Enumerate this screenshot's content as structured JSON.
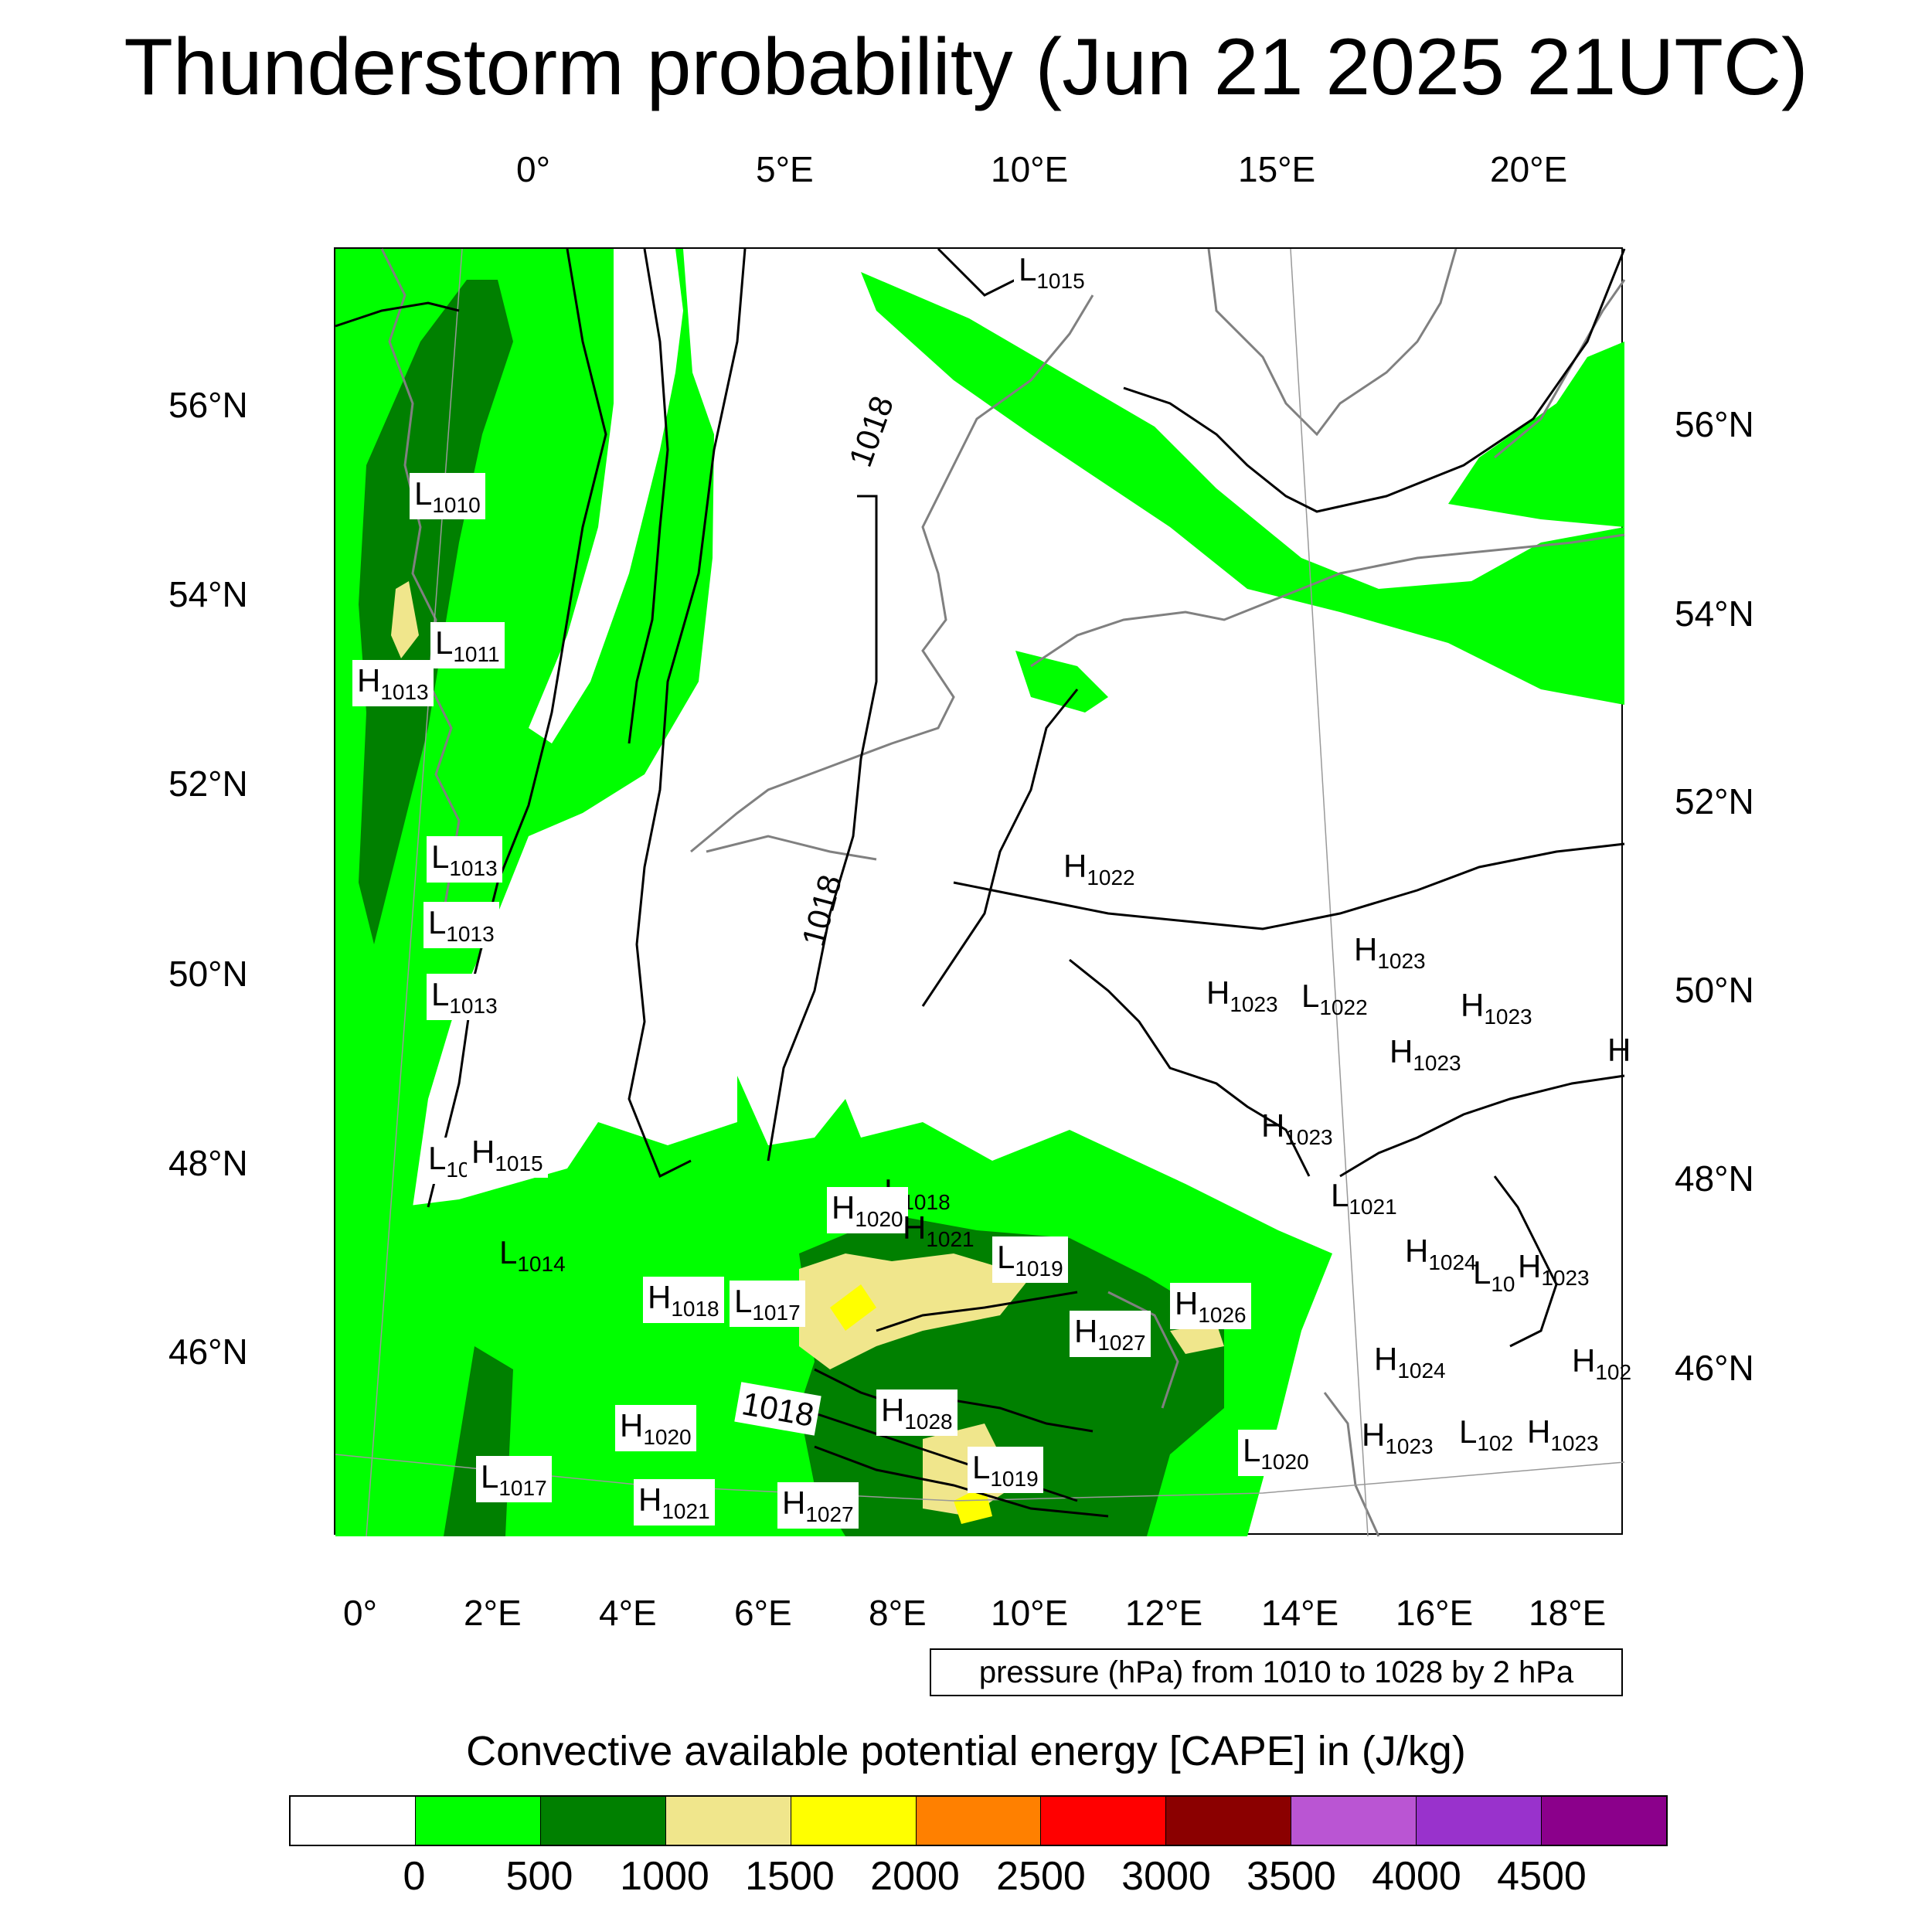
{
  "title": "Thunderstorm probability (Jun 21 2025 21UTC)",
  "map": {
    "lon_labels_top": [
      "0°",
      "5°E",
      "10°E",
      "15°E",
      "20°E"
    ],
    "lon_labels_bottom": [
      "0°",
      "2°E",
      "4°E",
      "6°E",
      "8°E",
      "10°E",
      "12°E",
      "14°E",
      "16°E",
      "18°E"
    ],
    "lat_labels_left": [
      "56°N",
      "54°N",
      "52°N",
      "50°N",
      "48°N",
      "46°N"
    ],
    "lat_labels_right": [
      "56°N",
      "54°N",
      "52°N",
      "50°N",
      "48°N",
      "46°N"
    ],
    "isobar_labels": [
      "1018",
      "1018",
      "1018"
    ],
    "pressure_centers": [
      {
        "type": "L",
        "value": "1015"
      },
      {
        "type": "L",
        "value": "1010"
      },
      {
        "type": "L",
        "value": "1011"
      },
      {
        "type": "H",
        "value": "1013"
      },
      {
        "type": "L",
        "value": "1013"
      },
      {
        "type": "L",
        "value": "1013"
      },
      {
        "type": "L",
        "value": "1013"
      },
      {
        "type": "L",
        "value": "10"
      },
      {
        "type": "H",
        "value": "1015"
      },
      {
        "type": "L",
        "value": "1014"
      },
      {
        "type": "H",
        "value": "1022"
      },
      {
        "type": "H",
        "value": "1023"
      },
      {
        "type": "H",
        "value": "1023"
      },
      {
        "type": "L",
        "value": "1022"
      },
      {
        "type": "H",
        "value": "1023"
      },
      {
        "type": "H",
        "value": "1023"
      },
      {
        "type": "H",
        "value": "1023"
      },
      {
        "type": "L",
        "value": "1021"
      },
      {
        "type": "L",
        "value": "1018"
      },
      {
        "type": "H",
        "value": "1020"
      },
      {
        "type": "H",
        "value": "1021"
      },
      {
        "type": "L",
        "value": "1019"
      },
      {
        "type": "H",
        "value": "1018"
      },
      {
        "type": "L",
        "value": "1017"
      },
      {
        "type": "H",
        "value": "1027"
      },
      {
        "type": "H",
        "value": "1026"
      },
      {
        "type": "H",
        "value": "1024"
      },
      {
        "type": "L",
        "value": "10"
      },
      {
        "type": "H",
        "value": "1023"
      },
      {
        "type": "H",
        "value": "1024"
      },
      {
        "type": "H",
        "value": "102"
      },
      {
        "type": "H",
        "value": "1028"
      },
      {
        "type": "H",
        "value": "1020"
      },
      {
        "type": "L",
        "value": "1019"
      },
      {
        "type": "L",
        "value": "1020"
      },
      {
        "type": "H",
        "value": "1023"
      },
      {
        "type": "L",
        "value": "102"
      },
      {
        "type": "H",
        "value": "1023"
      },
      {
        "type": "L",
        "value": "1017"
      },
      {
        "type": "H",
        "value": "1021"
      },
      {
        "type": "H",
        "value": "1027"
      },
      {
        "type": "H",
        "value": ""
      }
    ]
  },
  "contour_info": "pressure (hPa) from 1010 to 1028 by 2 hPa",
  "colorbar": {
    "title": "Convective available potential energy [CAPE] in (J/kg)",
    "colors": [
      "#ffffff",
      "#00ff00",
      "#008000",
      "#f0e68c",
      "#ffff00",
      "#ff8000",
      "#ff0000",
      "#8b0000",
      "#ba55d3",
      "#9932cc",
      "#8b008b"
    ],
    "ticks": [
      "0",
      "500",
      "1000",
      "1500",
      "2000",
      "2500",
      "3000",
      "3500",
      "4000",
      "4500"
    ]
  }
}
